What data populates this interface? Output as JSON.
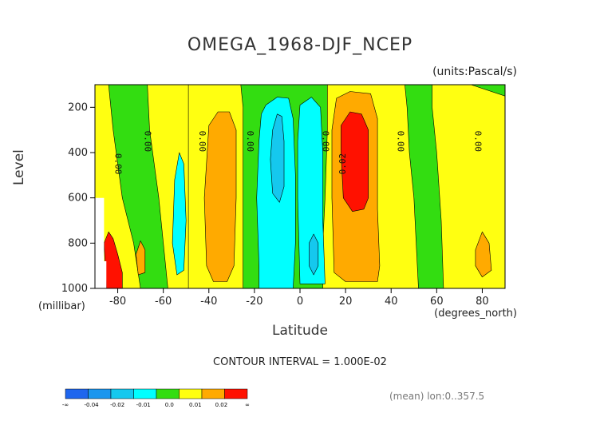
{
  "chart_data": {
    "type": "heatmap",
    "title": "OMEGA_1968-DJF_NCEP",
    "units": "(units:Pascal/s)",
    "ylabel": "Level",
    "yunits": "(millibar)",
    "xlabel": "Latitude",
    "xunits": "(degrees_north)",
    "xlim": [
      -90,
      90
    ],
    "ylim": [
      100,
      1000
    ],
    "x_ticks": [
      "-80",
      "-60",
      "-40",
      "-20",
      "0",
      "20",
      "40",
      "60",
      "80"
    ],
    "x_tick_values": [
      -80,
      -60,
      -40,
      -20,
      0,
      20,
      40,
      60,
      80
    ],
    "y_ticks": [
      "200",
      "400",
      "600",
      "800",
      "1000"
    ],
    "y_tick_values": [
      200,
      400,
      600,
      800,
      1000
    ],
    "contour_interval_text": "CONTOUR INTERVAL = 1.000E-02",
    "mean_note": "(mean) lon:0..357.5",
    "colorbar": {
      "labels": [
        "-∞",
        "-0.04",
        "-0.02",
        "-0.01",
        "0.0",
        "0.01",
        "0.02",
        "∞"
      ],
      "colors": [
        "#1f66ee",
        "#1b96ee",
        "#15c8ee",
        "#00ffff",
        "#33dd11",
        "#ffff11",
        "#ffaa00",
        "#ff1100"
      ]
    },
    "contour_labels": [
      {
        "text": "0.00",
        "lat": -80,
        "level": 450,
        "rotate": 90
      },
      {
        "text": "0.00",
        "lat": -67,
        "level": 350,
        "rotate": 90
      },
      {
        "text": "0.00",
        "lat": -43,
        "level": 350,
        "rotate": 90
      },
      {
        "text": "0.00",
        "lat": -22,
        "level": 350,
        "rotate": 90
      },
      {
        "text": "0.00",
        "lat": 11,
        "level": 350,
        "rotate": 90
      },
      {
        "text": "0.02",
        "lat": 19,
        "level": 450,
        "rotate": -90
      },
      {
        "text": "0.00",
        "lat": 44,
        "level": 350,
        "rotate": 90
      },
      {
        "text": "0.00",
        "lat": 78,
        "level": 350,
        "rotate": 90
      }
    ],
    "regions": [
      {
        "value": 0.0,
        "color": "#33dd11",
        "pts": [
          [
            -90,
            100
          ],
          [
            90,
            100
          ],
          [
            90,
            1000
          ],
          [
            -90,
            1000
          ]
        ]
      },
      {
        "value": 0.005,
        "color": "#ffff11",
        "pts": [
          [
            -90,
            100
          ],
          [
            -84,
            100
          ],
          [
            -82,
            300
          ],
          [
            -78,
            600
          ],
          [
            -73,
            800
          ],
          [
            -70,
            1000
          ],
          [
            -90,
            1000
          ]
        ]
      },
      {
        "value": 0.005,
        "color": "#ffff11",
        "pts": [
          [
            -67,
            100
          ],
          [
            -66,
            300
          ],
          [
            -62,
            600
          ],
          [
            -60,
            800
          ],
          [
            -58,
            1000
          ],
          [
            -47,
            1000
          ],
          [
            -46,
            700
          ],
          [
            -46,
            300
          ],
          [
            -45,
            100
          ]
        ]
      },
      {
        "value": 0.005,
        "color": "#ffff11",
        "pts": [
          [
            -44,
            100
          ],
          [
            -40,
            100
          ],
          [
            -37,
            100
          ],
          [
            -31,
            100
          ],
          [
            -26,
            100
          ],
          [
            -25,
            200
          ],
          [
            -25,
            1000
          ],
          [
            -49,
            1000
          ],
          [
            -49,
            100
          ]
        ]
      },
      {
        "value": 0.005,
        "color": "#ffff11",
        "pts": [
          [
            -2,
            100
          ],
          [
            8,
            100
          ],
          [
            12,
            100
          ],
          [
            12,
            300
          ],
          [
            11,
            600
          ],
          [
            10,
            800
          ],
          [
            10,
            1000
          ],
          [
            52,
            1000
          ],
          [
            51,
            800
          ],
          [
            50,
            600
          ],
          [
            48,
            400
          ],
          [
            47,
            200
          ],
          [
            46,
            100
          ]
        ]
      },
      {
        "value": 0.005,
        "color": "#ffff11",
        "pts": [
          [
            58,
            100
          ],
          [
            63,
            100
          ],
          [
            75,
            100
          ],
          [
            90,
            150
          ],
          [
            90,
            1000
          ],
          [
            63,
            1000
          ],
          [
            62,
            700
          ],
          [
            60,
            400
          ],
          [
            58,
            200
          ]
        ]
      },
      {
        "value": 0.015,
        "color": "#ffaa00",
        "pts": [
          [
            -40,
            280
          ],
          [
            -36,
            220
          ],
          [
            -31,
            220
          ],
          [
            -28,
            300
          ],
          [
            -28,
            600
          ],
          [
            -29,
            900
          ],
          [
            -32,
            970
          ],
          [
            -38,
            970
          ],
          [
            -41,
            900
          ],
          [
            -42,
            600
          ]
        ]
      },
      {
        "value": 0.015,
        "color": "#ffaa00",
        "pts": [
          [
            16,
            160
          ],
          [
            22,
            130
          ],
          [
            31,
            140
          ],
          [
            34,
            250
          ],
          [
            34,
            650
          ],
          [
            35,
            900
          ],
          [
            34,
            970
          ],
          [
            26,
            970
          ],
          [
            20,
            970
          ],
          [
            15,
            930
          ],
          [
            14,
            600
          ],
          [
            14,
            300
          ]
        ]
      },
      {
        "value": 0.015,
        "color": "#ffaa00",
        "pts": [
          [
            -72,
            850
          ],
          [
            -70,
            790
          ],
          [
            -68,
            830
          ],
          [
            -68,
            930
          ],
          [
            -71,
            940
          ]
        ]
      },
      {
        "value": 0.015,
        "color": "#ffaa00",
        "pts": [
          [
            77,
            830
          ],
          [
            80,
            750
          ],
          [
            83,
            800
          ],
          [
            84,
            920
          ],
          [
            80,
            950
          ],
          [
            77,
            900
          ]
        ]
      },
      {
        "value": 0.025,
        "color": "#ff1100",
        "pts": [
          [
            18,
            280
          ],
          [
            22,
            220
          ],
          [
            27,
            230
          ],
          [
            30,
            300
          ],
          [
            30,
            600
          ],
          [
            28,
            650
          ],
          [
            23,
            660
          ],
          [
            19,
            600
          ],
          [
            18,
            400
          ]
        ]
      },
      {
        "value": 0.025,
        "color": "#ff1100",
        "pts": [
          [
            -84,
            750
          ],
          [
            -82,
            780
          ],
          [
            -80,
            850
          ],
          [
            -78,
            930
          ],
          [
            -78,
            1000
          ],
          [
            -85,
            1000
          ],
          [
            -86,
            800
          ]
        ]
      },
      {
        "value": -0.005,
        "color": "#00ffff",
        "pts": [
          [
            -15,
            190
          ],
          [
            -10,
            155
          ],
          [
            -5,
            160
          ],
          [
            -3,
            250
          ],
          [
            -2,
            500
          ],
          [
            -2,
            800
          ],
          [
            -3,
            1000
          ],
          [
            -18,
            1000
          ],
          [
            -18,
            900
          ],
          [
            -19,
            600
          ],
          [
            -18,
            350
          ],
          [
            -17,
            230
          ]
        ]
      },
      {
        "value": -0.005,
        "color": "#00ffff",
        "pts": [
          [
            0,
            190
          ],
          [
            5,
            155
          ],
          [
            9,
            200
          ],
          [
            10,
            400
          ],
          [
            10,
            700
          ],
          [
            11,
            980
          ],
          [
            0,
            980
          ],
          [
            -1,
            600
          ],
          [
            -1,
            350
          ]
        ]
      },
      {
        "value": -0.005,
        "color": "#00ffff",
        "pts": [
          [
            -55,
            520
          ],
          [
            -53,
            400
          ],
          [
            -51,
            450
          ],
          [
            -50,
            700
          ],
          [
            -51,
            920
          ],
          [
            -54,
            940
          ],
          [
            -56,
            800
          ]
        ]
      },
      {
        "value": -0.015,
        "color": "#15c8ee",
        "pts": [
          [
            -12,
            300
          ],
          [
            -10,
            230
          ],
          [
            -8,
            240
          ],
          [
            -7,
            350
          ],
          [
            -7,
            550
          ],
          [
            -9,
            620
          ],
          [
            -12,
            580
          ],
          [
            -13,
            430
          ]
        ]
      },
      {
        "value": -0.015,
        "color": "#15c8ee",
        "pts": [
          [
            4,
            800
          ],
          [
            6,
            760
          ],
          [
            8,
            800
          ],
          [
            8,
            900
          ],
          [
            6,
            940
          ],
          [
            4,
            900
          ]
        ]
      }
    ],
    "grey_region": [
      [
        -90,
        600
      ],
      [
        -86,
        600
      ],
      [
        -86,
        1000
      ],
      [
        -90,
        1000
      ]
    ],
    "white_region": [
      [
        -88,
        880
      ],
      [
        -85,
        880
      ],
      [
        -85,
        1000
      ],
      [
        -88,
        1000
      ]
    ]
  }
}
